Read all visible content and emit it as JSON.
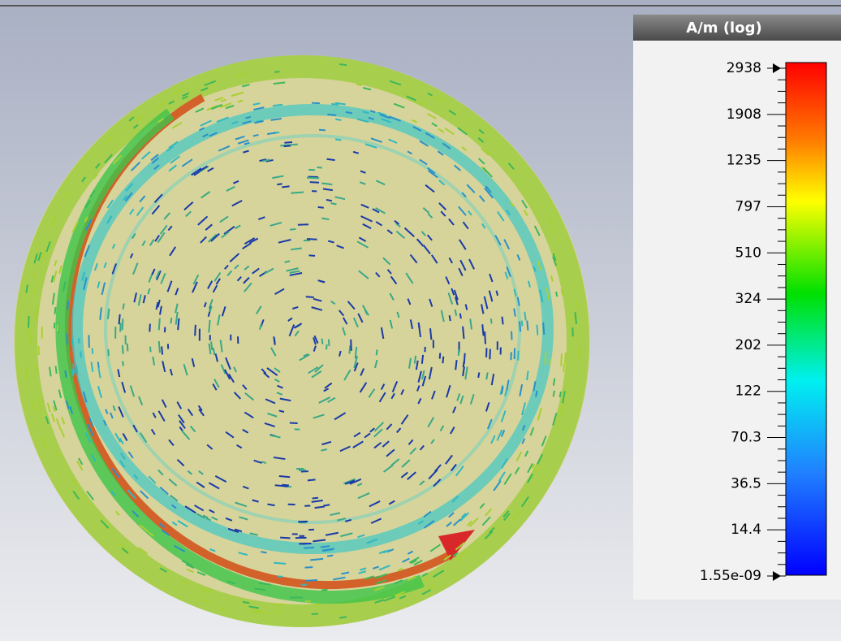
{
  "legend": {
    "title": "A/m (log)",
    "labels": [
      "2938",
      "1908",
      "1235",
      "797",
      "510",
      "324",
      "202",
      "122",
      "70.3",
      "36.5",
      "14.4",
      "1.55e-09"
    ]
  }
}
